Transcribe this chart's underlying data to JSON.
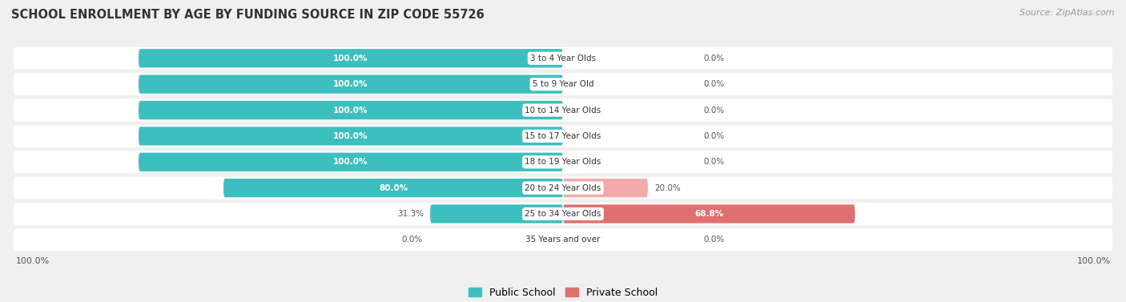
{
  "title": "SCHOOL ENROLLMENT BY AGE BY FUNDING SOURCE IN ZIP CODE 55726",
  "source": "Source: ZipAtlas.com",
  "categories": [
    "3 to 4 Year Olds",
    "5 to 9 Year Old",
    "10 to 14 Year Olds",
    "15 to 17 Year Olds",
    "18 to 19 Year Olds",
    "20 to 24 Year Olds",
    "25 to 34 Year Olds",
    "35 Years and over"
  ],
  "public_values": [
    100.0,
    100.0,
    100.0,
    100.0,
    100.0,
    80.0,
    31.3,
    0.0
  ],
  "private_values": [
    0.0,
    0.0,
    0.0,
    0.0,
    0.0,
    20.0,
    68.8,
    0.0
  ],
  "public_color": "#3dbfbf",
  "public_color_light": "#a8dede",
  "private_color_light": "#f2aaaa",
  "private_color_dark": "#e07070",
  "public_label": "Public School",
  "private_label": "Private School",
  "bg_color": "#f0f0f0",
  "row_bg_color": "#ffffff",
  "title_fontsize": 10.5,
  "source_fontsize": 8,
  "label_fontsize": 7.5,
  "bottom_left_label": "100.0%",
  "bottom_right_label": "100.0%"
}
